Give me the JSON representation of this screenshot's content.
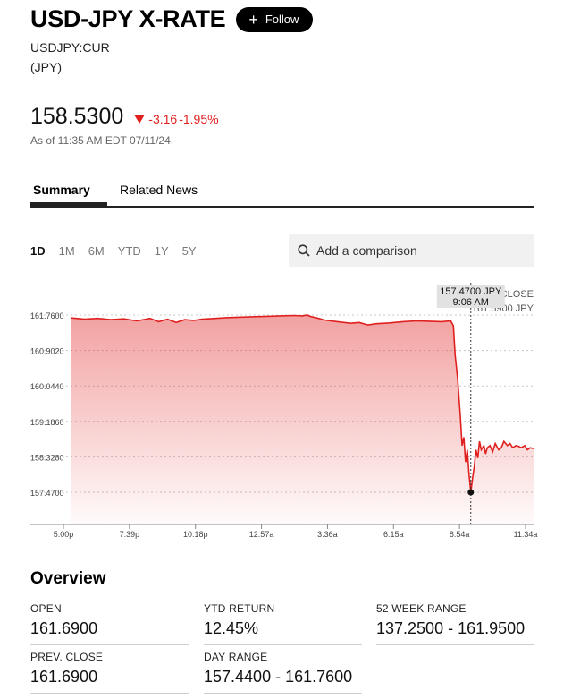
{
  "header": {
    "title": "USD-JPY X-RATE",
    "follow_label": "Follow",
    "ticker": "USDJPY:CUR",
    "currency": "(JPY)"
  },
  "quote": {
    "price": "158.5300",
    "change": "-3.16",
    "change_pct": "-1.95%",
    "as_of": "As of 11:35 AM EDT 07/11/24."
  },
  "tabs": [
    {
      "label": "Summary",
      "active": true
    },
    {
      "label": "Related News",
      "active": false
    }
  ],
  "ranges": [
    {
      "label": "1D",
      "active": true
    },
    {
      "label": "1M"
    },
    {
      "label": "6M"
    },
    {
      "label": "YTD"
    },
    {
      "label": "1Y"
    },
    {
      "label": "5Y"
    }
  ],
  "search": {
    "placeholder": "Add a comparison"
  },
  "colors": {
    "line": "#e0201f",
    "accent": "#e0201f"
  },
  "chart_data": {
    "type": "area",
    "y_ticks": [
      "161.7600",
      "160.9020",
      "160.0440",
      "159.1860",
      "158.3280",
      "157.4700"
    ],
    "x_ticks": [
      "5:00p",
      "7:39p",
      "10:18p",
      "12:57a",
      "3:36a",
      "6:15a",
      "8:54a",
      "11:34a"
    ],
    "ylim": [
      157.47,
      161.76
    ],
    "prev_close": {
      "label": "PREV. CLOSE",
      "value": "161.6900 JPY",
      "y": 161.69
    },
    "tooltip": {
      "value": "157.4700 JPY",
      "time": "9:06 AM"
    },
    "series": [
      {
        "points": [
          [
            0,
            161.69
          ],
          [
            1.5,
            161.66
          ],
          [
            3,
            161.68
          ],
          [
            4.5,
            161.65
          ],
          [
            6,
            161.67
          ],
          [
            7.5,
            161.62
          ],
          [
            9,
            161.68
          ],
          [
            10,
            161.6
          ],
          [
            11,
            161.66
          ],
          [
            12,
            161.58
          ],
          [
            13,
            161.65
          ],
          [
            14,
            161.63
          ],
          [
            15,
            161.66
          ],
          [
            16.5,
            161.68
          ],
          [
            18,
            161.7
          ],
          [
            19.5,
            161.71
          ],
          [
            21,
            161.72
          ],
          [
            22.5,
            161.73
          ],
          [
            24,
            161.74
          ],
          [
            25.5,
            161.75
          ],
          [
            26.5,
            161.74
          ],
          [
            27,
            161.76
          ],
          [
            27.5,
            161.72
          ],
          [
            28,
            161.7
          ],
          [
            29,
            161.64
          ],
          [
            30.5,
            161.6
          ],
          [
            32,
            161.56
          ],
          [
            33,
            161.58
          ],
          [
            34,
            161.52
          ],
          [
            35,
            161.55
          ],
          [
            36.5,
            161.57
          ],
          [
            38,
            161.6
          ],
          [
            39.5,
            161.62
          ],
          [
            41,
            161.61
          ],
          [
            42.5,
            161.6
          ],
          [
            43.5,
            161.62
          ],
          [
            43.8,
            161.5
          ],
          [
            44,
            160.8
          ],
          [
            44.3,
            160.2
          ],
          [
            44.6,
            159.3
          ],
          [
            44.8,
            158.6
          ],
          [
            45,
            158.8
          ],
          [
            45.2,
            158.2
          ],
          [
            45.4,
            158.5
          ],
          [
            45.6,
            157.9
          ],
          [
            45.8,
            157.47
          ],
          [
            46,
            157.8
          ],
          [
            46.2,
            158.1
          ],
          [
            46.4,
            158.5
          ],
          [
            46.6,
            158.3
          ],
          [
            46.8,
            158.7
          ],
          [
            47,
            158.5
          ],
          [
            47.3,
            158.6
          ],
          [
            47.5,
            158.4
          ],
          [
            47.7,
            158.55
          ],
          [
            48,
            158.6
          ],
          [
            48.3,
            158.45
          ],
          [
            48.6,
            158.65
          ],
          [
            49,
            158.5
          ],
          [
            49.3,
            158.55
          ],
          [
            49.6,
            158.7
          ],
          [
            50,
            158.6
          ],
          [
            50.3,
            158.65
          ],
          [
            50.6,
            158.55
          ],
          [
            51,
            158.6
          ],
          [
            51.3,
            158.58
          ],
          [
            51.6,
            158.55
          ],
          [
            52,
            158.6
          ],
          [
            52.3,
            158.5
          ],
          [
            52.6,
            158.55
          ],
          [
            53,
            158.53
          ]
        ]
      }
    ]
  },
  "overview": {
    "title": "Overview",
    "stats": [
      {
        "label": "OPEN",
        "value": "161.6900"
      },
      {
        "label": "YTD RETURN",
        "value": "12.45%"
      },
      {
        "label": "52 WEEK RANGE",
        "value": "137.2500 - 161.9500"
      },
      {
        "label": "PREV. CLOSE",
        "value": "161.6900"
      },
      {
        "label": "DAY RANGE",
        "value": "157.4400 - 161.7600"
      }
    ]
  }
}
